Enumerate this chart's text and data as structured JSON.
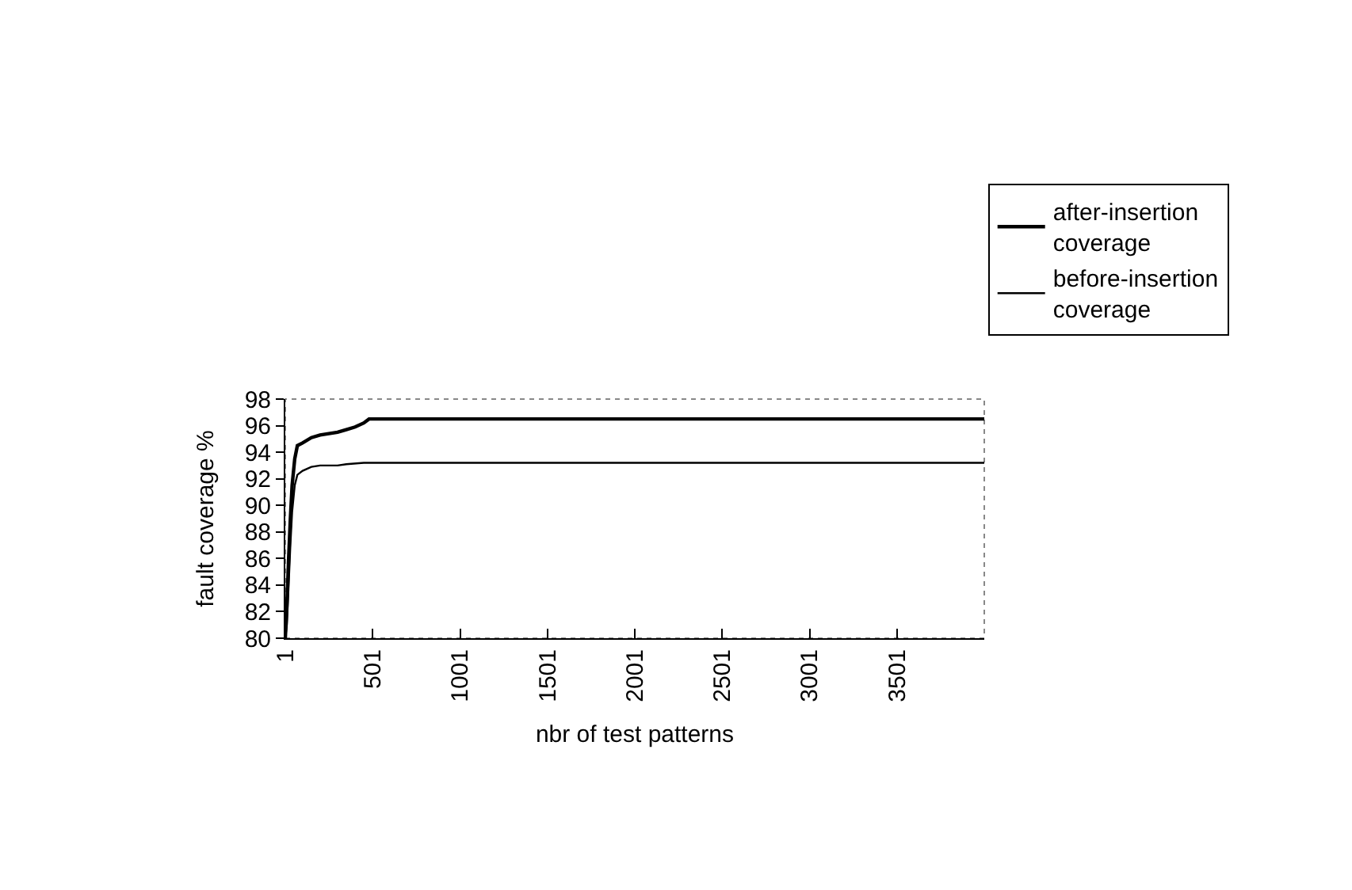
{
  "chart_data": {
    "type": "line",
    "xlabel": "nbr of test patterns",
    "ylabel": "fault coverage %",
    "xlim": [
      1,
      4000
    ],
    "xticks": [
      1,
      501,
      1001,
      1501,
      2001,
      2501,
      3001,
      3501
    ],
    "ylim": [
      80,
      98
    ],
    "yticks": [
      80,
      82,
      84,
      86,
      88,
      90,
      92,
      94,
      96,
      98
    ],
    "grid": false,
    "legend": "top right",
    "marker": "none",
    "line_style": "solid",
    "series": [
      {
        "name": "after-insertion coverage",
        "color": "#000000",
        "x": [
          1,
          10,
          20,
          30,
          40,
          55,
          70,
          100,
          150,
          200,
          300,
          350,
          400,
          450,
          480,
          600,
          1000,
          2000,
          3000,
          4000
        ],
        "values": [
          80,
          82.5,
          86,
          89,
          91.5,
          93.5,
          94.5,
          94.7,
          95.1,
          95.3,
          95.5,
          95.7,
          95.9,
          96.2,
          96.5,
          96.5,
          96.5,
          96.5,
          96.5,
          96.5
        ]
      },
      {
        "name": "before-insertion coverage",
        "color": "#000000",
        "x": [
          1,
          10,
          20,
          30,
          40,
          55,
          70,
          100,
          150,
          200,
          300,
          350,
          450,
          600,
          1000,
          2000,
          3000,
          4000
        ],
        "values": [
          80,
          81,
          84,
          87,
          89.5,
          91.5,
          92.3,
          92.6,
          92.9,
          93,
          93,
          93.1,
          93.2,
          93.2,
          93.2,
          93.2,
          93.2,
          93.2
        ]
      }
    ]
  }
}
